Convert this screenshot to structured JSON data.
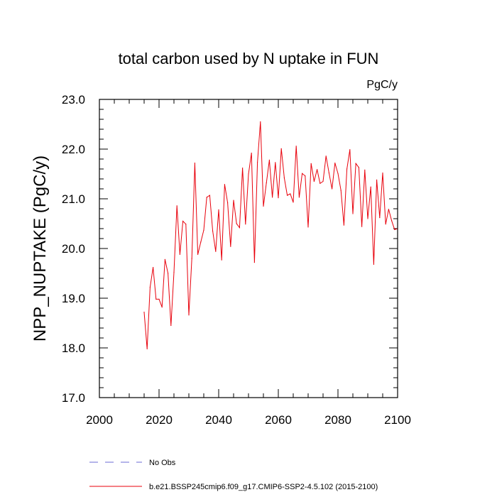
{
  "chart_data": {
    "type": "line",
    "title": "total carbon used by N uptake in FUN",
    "units_label": "PgC/y",
    "ylabel": "NPP_NUPTAKE  (PgC/y)",
    "xlabel": "",
    "xlim": [
      2000,
      2100
    ],
    "ylim": [
      17.0,
      23.0
    ],
    "x_ticks": [
      2000,
      2020,
      2040,
      2060,
      2080,
      2100
    ],
    "x_tick_labels": [
      "2000",
      "2020",
      "2040",
      "2060",
      "2080",
      "2100"
    ],
    "y_ticks": [
      17.0,
      18.0,
      19.0,
      20.0,
      21.0,
      22.0,
      23.0
    ],
    "y_tick_labels": [
      "17.0",
      "18.0",
      "19.0",
      "20.0",
      "21.0",
      "22.0",
      "23.0"
    ],
    "grid": false,
    "legend_position": "bottom",
    "legend": [
      {
        "label": "No Obs",
        "color": "#6b6bd6",
        "style": "dashed"
      },
      {
        "label": "b.e21.BSSP245cmip6.f09_g17.CMIP6-SSP2-4.5.102 (2015-2100)",
        "color": "#e8000b",
        "style": "solid"
      }
    ],
    "series": [
      {
        "color": "#e8000b",
        "x": [
          2015,
          2016,
          2017,
          2018,
          2019,
          2020,
          2021,
          2022,
          2023,
          2024,
          2025,
          2026,
          2027,
          2028,
          2029,
          2030,
          2031,
          2032,
          2033,
          2034,
          2035,
          2036,
          2037,
          2038,
          2039,
          2040,
          2041,
          2042,
          2043,
          2044,
          2045,
          2046,
          2047,
          2048,
          2049,
          2050,
          2051,
          2052,
          2053,
          2054,
          2055,
          2056,
          2057,
          2058,
          2059,
          2060,
          2061,
          2062,
          2063,
          2064,
          2065,
          2066,
          2067,
          2068,
          2069,
          2070,
          2071,
          2072,
          2073,
          2074,
          2075,
          2076,
          2077,
          2078,
          2079,
          2080,
          2081,
          2082,
          2083,
          2084,
          2085,
          2086,
          2087,
          2088,
          2089,
          2090,
          2091,
          2092,
          2093,
          2094,
          2095,
          2096,
          2097,
          2098,
          2099,
          2100
        ],
        "y": [
          18.72,
          17.98,
          19.22,
          19.62,
          18.98,
          18.98,
          18.82,
          19.78,
          19.5,
          18.45,
          19.52,
          20.86,
          19.88,
          20.55,
          20.49,
          18.66,
          19.8,
          21.72,
          19.88,
          20.13,
          20.37,
          21.03,
          21.07,
          20.35,
          19.94,
          20.78,
          19.77,
          21.29,
          20.92,
          20.04,
          20.97,
          20.5,
          20.42,
          21.62,
          20.49,
          21.5,
          21.92,
          19.72,
          21.73,
          22.55,
          20.85,
          21.32,
          21.78,
          21.03,
          21.73,
          21.02,
          22.01,
          21.42,
          21.07,
          21.1,
          20.93,
          22.06,
          21.03,
          21.51,
          21.46,
          20.43,
          21.71,
          21.35,
          21.59,
          21.31,
          21.35,
          21.86,
          21.52,
          21.2,
          21.72,
          21.51,
          21.17,
          20.47,
          21.6,
          21.99,
          20.7,
          21.71,
          21.63,
          20.44,
          21.58,
          20.6,
          21.24,
          19.68,
          21.38,
          20.62,
          21.52,
          20.49,
          20.79,
          20.56,
          20.38,
          20.4
        ]
      }
    ]
  }
}
